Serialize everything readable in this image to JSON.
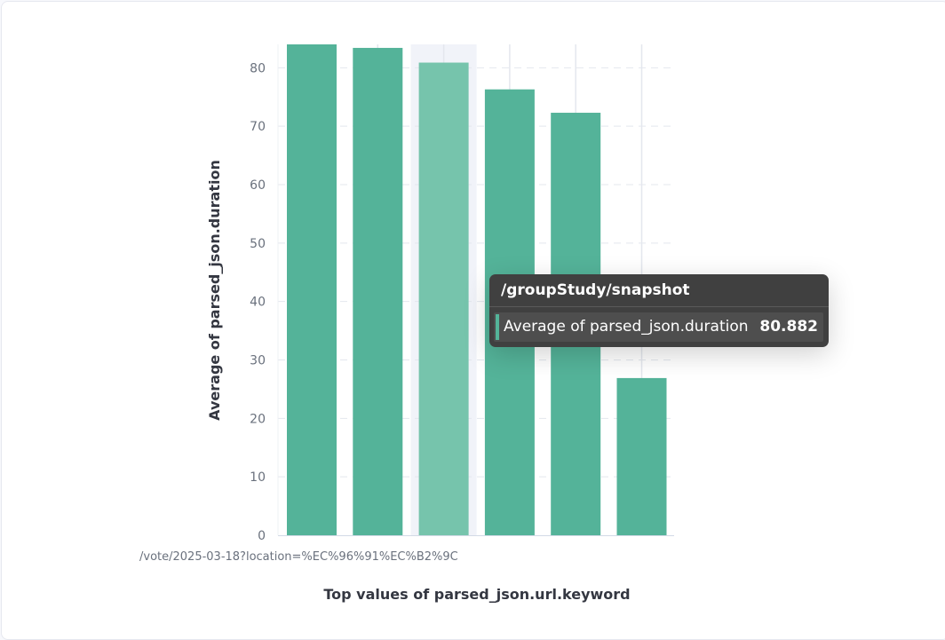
{
  "chart_data": {
    "type": "bar",
    "xlabel": "Top values of parsed_json.url.keyword",
    "ylabel": "Average of parsed_json.duration",
    "categories": [
      "/vote/2025-03-18?location=%EC%96%91%EC%B2%9C",
      "",
      "/groupStudy/snapshot",
      "",
      "",
      ""
    ],
    "series": [
      {
        "values": [
          84,
          83.4,
          80.882,
          76.3,
          72.3,
          26.9
        ]
      }
    ],
    "ylim": [
      0,
      84
    ],
    "yticks": [
      0,
      10,
      20,
      30,
      40,
      50,
      60,
      70,
      80
    ],
    "grid": true,
    "colors": {
      "bar": "#54b399",
      "bar_highlight": "#76c4ac",
      "hover_band": "#f1f3f9"
    },
    "highlighted_index": 2,
    "tooltip": {
      "title": "/groupStudy/snapshot",
      "label": "Average of parsed_json.duration",
      "value": "80.882"
    }
  }
}
